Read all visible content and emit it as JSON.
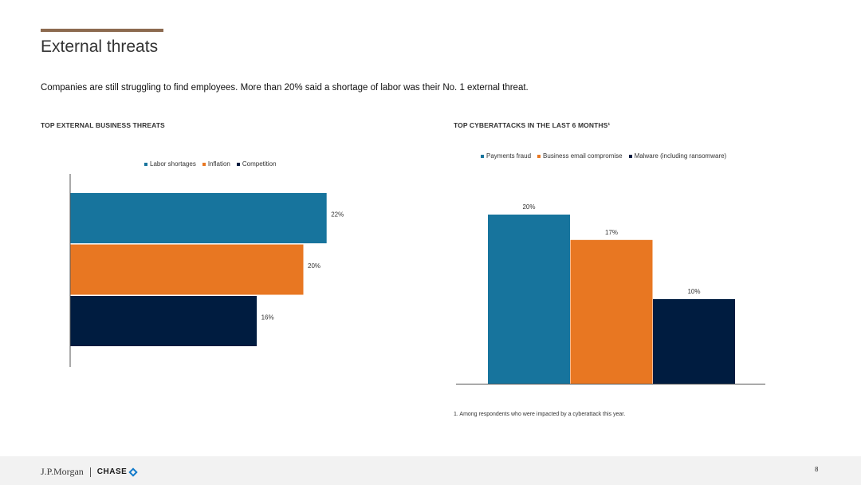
{
  "page": {
    "title": "External threats",
    "subtitle": "Companies are still struggling to find employees. More than 20% said a shortage of labor was their No. 1 external threat.",
    "footnote": "1. Among respondents who were impacted by a cyberattack this year.",
    "page_number": "8",
    "logo_jpm": "J.P.Morgan",
    "logo_chase": "CHASE",
    "accent_color": "#8c6a4f"
  },
  "chart_data": [
    {
      "type": "bar",
      "orientation": "horizontal",
      "title": "TOP EXTERNAL BUSINESS THREATS",
      "categories": [
        ""
      ],
      "series": [
        {
          "name": "Labor shortages",
          "values": [
            22
          ],
          "label": "22%",
          "color": "#17749d"
        },
        {
          "name": "Inflation",
          "values": [
            20
          ],
          "label": "20%",
          "color": "#e87722"
        },
        {
          "name": "Competition",
          "values": [
            16
          ],
          "label": "16%",
          "color": "#001c40"
        }
      ],
      "xlim": [
        0,
        25
      ],
      "legend_position": "top",
      "grid": false
    },
    {
      "type": "bar",
      "orientation": "vertical",
      "title": "TOP CYBERATTACKS IN THE LAST 6 MONTHS¹",
      "categories": [
        ""
      ],
      "series": [
        {
          "name": "Payments fraud",
          "values": [
            20
          ],
          "label": "20%",
          "color": "#17749d"
        },
        {
          "name": "Business email compromise",
          "values": [
            17
          ],
          "label": "17%",
          "color": "#e87722"
        },
        {
          "name": "Malware (including ransomware)",
          "values": [
            10
          ],
          "label": "10%",
          "color": "#001c40"
        }
      ],
      "ylim": [
        0,
        22
      ],
      "legend_position": "top",
      "grid": false
    }
  ]
}
